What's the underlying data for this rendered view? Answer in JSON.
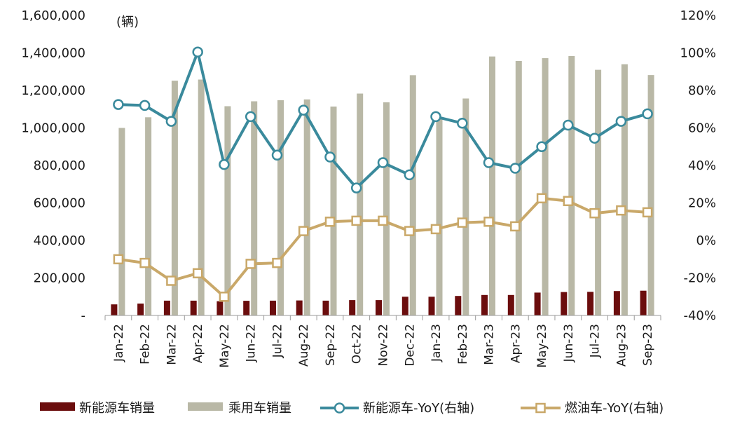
{
  "chart_data": {
    "type": "bar",
    "unit_label": "(辆)",
    "categories": [
      "Jan-22",
      "Feb-22",
      "Mar-22",
      "Apr-22",
      "May-22",
      "Jun-22",
      "Jul-22",
      "Aug-22",
      "Sep-22",
      "Oct-22",
      "Nov-22",
      "Dec-22",
      "Jan-23",
      "Feb-23",
      "Mar-23",
      "Apr-23",
      "May-23",
      "Jun-23",
      "Jul-23",
      "Aug-23",
      "Sep-23"
    ],
    "left_axis": {
      "ylim": [
        0,
        1600000
      ],
      "ticks": [
        0,
        200000,
        400000,
        600000,
        800000,
        1000000,
        1200000,
        1400000,
        1600000
      ],
      "tick_labels": [
        "-",
        "200,000",
        "400,000",
        "600,000",
        "800,000",
        "1,000,000",
        "1,200,000",
        "1,400,000",
        "1,600,000"
      ]
    },
    "right_axis": {
      "ylim": [
        -40,
        120
      ],
      "ticks": [
        -40,
        -20,
        0,
        20,
        40,
        60,
        80,
        100,
        120
      ],
      "tick_labels": [
        "-40%",
        "-20%",
        "0%",
        "20%",
        "40%",
        "60%",
        "80%",
        "100%",
        "120%"
      ]
    },
    "grid": false,
    "legend_position": "bottom",
    "series": [
      {
        "name": "新能源车销量",
        "type": "bar",
        "axis": "left",
        "color": "#6b0d0d",
        "values": [
          59000,
          63000,
          79000,
          79000,
          76000,
          78000,
          79000,
          80000,
          79000,
          82000,
          82000,
          100000,
          100000,
          104000,
          109000,
          109000,
          122000,
          125000,
          126000,
          130000,
          132000
        ]
      },
      {
        "name": "乘用车销量",
        "type": "bar",
        "axis": "left",
        "color": "#b9b8a6",
        "values": [
          1000000,
          1057000,
          1252000,
          1258000,
          1116000,
          1142000,
          1148000,
          1152000,
          1114000,
          1183000,
          1137000,
          1281000,
          1048000,
          1157000,
          1381000,
          1357000,
          1372000,
          1383000,
          1310000,
          1340000,
          1282000
        ]
      },
      {
        "name": "新能源车-YoY(右轴)",
        "type": "line",
        "axis": "right",
        "color": "#3a8a9c",
        "marker": "circle",
        "values": [
          72.5,
          72.0,
          63.5,
          100.5,
          40.5,
          66.0,
          45.5,
          69.5,
          44.5,
          28.0,
          41.5,
          35.0,
          66.0,
          62.5,
          41.5,
          38.5,
          50.0,
          61.5,
          54.5,
          63.5,
          67.5
        ]
      },
      {
        "name": "燃油车-YoY(右轴)",
        "type": "line",
        "axis": "right",
        "color": "#c9a869",
        "marker": "square",
        "values": [
          -10.0,
          -12.0,
          -21.5,
          -17.5,
          -30.0,
          -12.5,
          -12.0,
          5.0,
          10.0,
          10.5,
          10.5,
          5.0,
          6.0,
          9.5,
          10.0,
          7.5,
          22.5,
          21.0,
          14.5,
          16.0,
          15.0
        ]
      }
    ]
  }
}
